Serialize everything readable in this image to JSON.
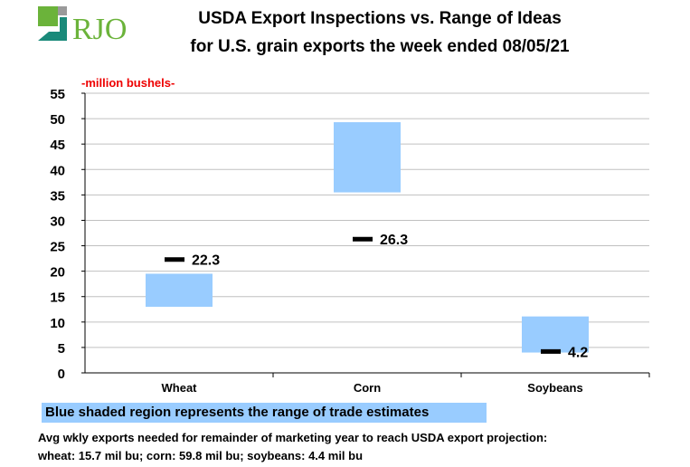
{
  "logo": {
    "text": "RJO"
  },
  "chart_data": {
    "type": "bar",
    "subtype": "floating-range-with-marker",
    "title": "USDA Export Inspections vs. Range of Ideas",
    "subtitle": "for U.S. grain exports the week ended 08/05/21",
    "ylabel": "-million bushels-",
    "ylim": [
      0,
      55
    ],
    "yticks": [
      0,
      5,
      10,
      15,
      20,
      25,
      30,
      35,
      40,
      45,
      50,
      55
    ],
    "grid": true,
    "categories": [
      "Wheat",
      "Corn",
      "Soybeans"
    ],
    "range_low": [
      13.0,
      35.5,
      4.0
    ],
    "range_high": [
      19.5,
      49.3,
      11.1
    ],
    "actual": [
      22.3,
      26.3,
      4.2
    ],
    "actual_labels": [
      "22.3",
      "26.3",
      "4.2"
    ],
    "range_color": "#99ccff",
    "legend": "Blue shaded region represents the range of trade estimates"
  },
  "notes": {
    "line1": "Avg wkly exports needed for remainder of marketing year to reach USDA export projection:",
    "line2": "wheat: 15.7 mil bu; corn: 59.8 mil bu; soybeans: 4.4 mil bu"
  }
}
